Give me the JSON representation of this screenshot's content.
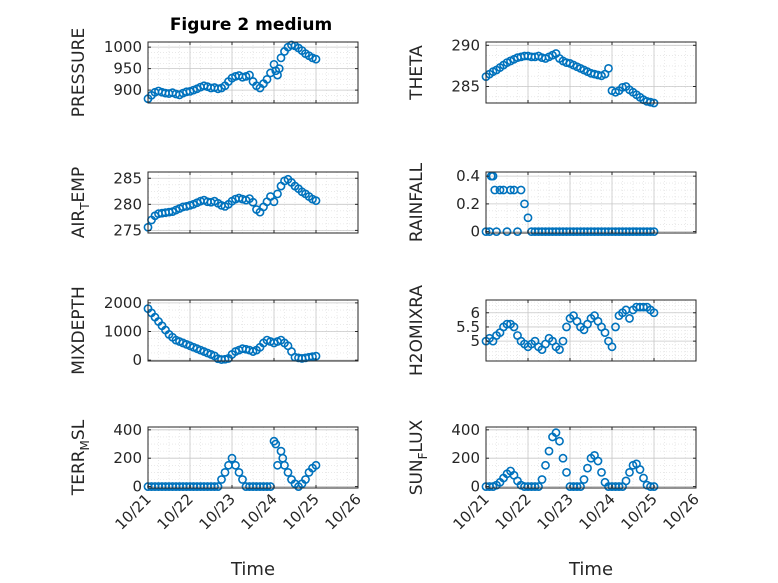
{
  "figure_title": "Figure 2 medium",
  "colors": {
    "marker": "#0072BD",
    "axis": "#262626",
    "grid": "#dcdcdc"
  },
  "chart_data": [
    {
      "type": "scatter",
      "title": "Figure 2 medium",
      "ylabel": "PRESSURE",
      "xlabel": "",
      "xlim": [
        "10/21",
        "10/26"
      ],
      "ylim": [
        870,
        1012
      ],
      "yticks": [
        900,
        950,
        1000
      ],
      "xtick_labels": [],
      "grid": true,
      "x": [
        "10/21 00:00",
        "10/21 02:00",
        "10/21 04:00",
        "10/21 06:00",
        "10/21 08:00",
        "10/21 10:00",
        "10/21 12:00",
        "10/21 14:00",
        "10/21 16:00",
        "10/21 18:00",
        "10/21 20:00",
        "10/21 22:00",
        "10/22 00:00",
        "10/22 02:00",
        "10/22 04:00",
        "10/22 06:00",
        "10/22 08:00",
        "10/22 10:00",
        "10/22 12:00",
        "10/22 14:00",
        "10/22 16:00",
        "10/22 18:00",
        "10/22 20:00",
        "10/22 22:00",
        "10/23 00:00",
        "10/23 02:00",
        "10/23 04:00",
        "10/23 06:00",
        "10/23 08:00",
        "10/23 10:00",
        "10/23 12:00",
        "10/23 14:00",
        "10/23 16:00",
        "10/23 18:00",
        "10/23 20:00",
        "10/23 22:00",
        "10/24 00:00",
        "10/24 01:00",
        "10/24 02:00",
        "10/24 03:00",
        "10/24 04:00",
        "10/24 06:00",
        "10/24 08:00",
        "10/24 10:00",
        "10/24 12:00",
        "10/24 14:00",
        "10/24 16:00",
        "10/24 18:00",
        "10/24 20:00",
        "10/24 22:00",
        "10/25 00:00"
      ],
      "values": [
        880,
        888,
        895,
        898,
        895,
        893,
        892,
        894,
        891,
        889,
        893,
        896,
        897,
        900,
        903,
        907,
        910,
        908,
        905,
        906,
        903,
        905,
        910,
        920,
        928,
        932,
        934,
        930,
        932,
        935,
        920,
        910,
        905,
        915,
        925,
        940,
        960,
        945,
        935,
        950,
        975,
        990,
        1000,
        1005,
        1003,
        998,
        992,
        985,
        980,
        975,
        972
      ]
    },
    {
      "type": "scatter",
      "ylabel": "THETA",
      "xlabel": "",
      "xlim": [
        "10/21",
        "10/26"
      ],
      "ylim": [
        283,
        290.4
      ],
      "yticks": [
        285,
        290
      ],
      "xtick_labels": [],
      "grid": true,
      "x": [
        "10/21 00:00",
        "10/21 02:00",
        "10/21 04:00",
        "10/21 06:00",
        "10/21 08:00",
        "10/21 10:00",
        "10/21 12:00",
        "10/21 14:00",
        "10/21 16:00",
        "10/21 18:00",
        "10/21 20:00",
        "10/21 22:00",
        "10/22 00:00",
        "10/22 02:00",
        "10/22 04:00",
        "10/22 06:00",
        "10/22 08:00",
        "10/22 10:00",
        "10/22 12:00",
        "10/22 14:00",
        "10/22 16:00",
        "10/22 18:00",
        "10/22 20:00",
        "10/22 22:00",
        "10/23 00:00",
        "10/23 02:00",
        "10/23 04:00",
        "10/23 06:00",
        "10/23 08:00",
        "10/23 10:00",
        "10/23 12:00",
        "10/23 14:00",
        "10/23 16:00",
        "10/23 18:00",
        "10/23 20:00",
        "10/23 22:00",
        "10/24 00:00",
        "10/24 02:00",
        "10/24 04:00",
        "10/24 06:00",
        "10/24 08:00",
        "10/24 10:00",
        "10/24 12:00",
        "10/24 14:00",
        "10/24 16:00",
        "10/24 18:00",
        "10/24 20:00",
        "10/24 22:00",
        "10/25 00:00"
      ],
      "values": [
        286.2,
        286.5,
        286.8,
        287.0,
        287.3,
        287.6,
        287.9,
        288.1,
        288.3,
        288.5,
        288.6,
        288.7,
        288.7,
        288.6,
        288.6,
        288.7,
        288.5,
        288.4,
        288.6,
        288.8,
        289.0,
        288.4,
        288.1,
        287.9,
        287.8,
        287.6,
        287.4,
        287.2,
        287.0,
        286.8,
        286.6,
        286.5,
        286.4,
        286.3,
        286.5,
        287.2,
        284.5,
        284.3,
        284.5,
        284.9,
        285.0,
        284.6,
        284.3,
        284.0,
        283.7,
        283.4,
        283.2,
        283.1,
        283.0
      ]
    },
    {
      "type": "scatter",
      "ylabel": "AIR_TEMP",
      "xlabel": "",
      "xlim": [
        "10/21",
        "10/26"
      ],
      "ylim": [
        274.5,
        286.2
      ],
      "yticks": [
        275,
        280,
        285
      ],
      "xtick_labels": [],
      "grid": true,
      "x": [
        "10/21 00:00",
        "10/21 02:00",
        "10/21 04:00",
        "10/21 06:00",
        "10/21 08:00",
        "10/21 10:00",
        "10/21 12:00",
        "10/21 14:00",
        "10/21 16:00",
        "10/21 18:00",
        "10/21 20:00",
        "10/21 22:00",
        "10/22 00:00",
        "10/22 02:00",
        "10/22 04:00",
        "10/22 06:00",
        "10/22 08:00",
        "10/22 10:00",
        "10/22 12:00",
        "10/22 14:00",
        "10/22 16:00",
        "10/22 18:00",
        "10/22 20:00",
        "10/22 22:00",
        "10/23 00:00",
        "10/23 02:00",
        "10/23 04:00",
        "10/23 06:00",
        "10/23 08:00",
        "10/23 10:00",
        "10/23 12:00",
        "10/23 14:00",
        "10/23 16:00",
        "10/23 18:00",
        "10/23 20:00",
        "10/23 22:00",
        "10/24 00:00",
        "10/24 02:00",
        "10/24 04:00",
        "10/24 06:00",
        "10/24 08:00",
        "10/24 10:00",
        "10/24 12:00",
        "10/24 14:00",
        "10/24 16:00",
        "10/24 18:00",
        "10/24 20:00",
        "10/24 22:00",
        "10/25 00:00"
      ],
      "values": [
        275.6,
        277.0,
        277.8,
        278.2,
        278.3,
        278.4,
        278.5,
        278.6,
        278.9,
        279.2,
        279.5,
        279.6,
        279.8,
        280.0,
        280.3,
        280.6,
        280.8,
        280.5,
        280.4,
        280.6,
        280.2,
        279.8,
        279.6,
        280.0,
        280.6,
        281.0,
        281.2,
        281.0,
        280.8,
        281.1,
        280.4,
        279.0,
        278.5,
        279.5,
        280.5,
        281.5,
        280.5,
        282.0,
        283.5,
        284.5,
        284.8,
        284.2,
        283.5,
        283.0,
        282.4,
        282.0,
        281.5,
        281.0,
        280.7
      ]
    },
    {
      "type": "scatter",
      "ylabel": "RAINFALL",
      "xlabel": "",
      "xlim": [
        "10/21",
        "10/26"
      ],
      "ylim": [
        -0.01,
        0.43
      ],
      "yticks": [
        0,
        0.2,
        0.4
      ],
      "xtick_labels": [],
      "grid": true,
      "x": [
        "10/21 00:00",
        "10/21 02:00",
        "10/21 03:00",
        "10/21 04:00",
        "10/21 05:00",
        "10/21 06:00",
        "10/21 08:00",
        "10/21 10:00",
        "10/21 12:00",
        "10/21 14:00",
        "10/21 16:00",
        "10/21 18:00",
        "10/21 20:00",
        "10/21 22:00",
        "10/22 00:00",
        "10/22 02:00",
        "10/22 04:00",
        "10/22 06:00",
        "10/22 08:00",
        "10/22 10:00",
        "10/22 12:00",
        "10/22 14:00",
        "10/22 16:00",
        "10/22 18:00",
        "10/22 20:00",
        "10/22 22:00",
        "10/23 00:00",
        "10/23 02:00",
        "10/23 04:00",
        "10/23 06:00",
        "10/23 08:00",
        "10/23 10:00",
        "10/23 12:00",
        "10/23 14:00",
        "10/23 16:00",
        "10/23 18:00",
        "10/23 20:00",
        "10/23 22:00",
        "10/24 00:00",
        "10/24 02:00",
        "10/24 04:00",
        "10/24 06:00",
        "10/24 08:00",
        "10/24 10:00",
        "10/24 12:00",
        "10/24 14:00",
        "10/24 16:00",
        "10/24 18:00",
        "10/24 20:00",
        "10/24 22:00",
        "10/25 00:00"
      ],
      "values": [
        0,
        0,
        0.4,
        0.4,
        0.3,
        0,
        0.3,
        0.3,
        0,
        0.3,
        0.3,
        0,
        0.3,
        0.2,
        0.1,
        0,
        0,
        0,
        0,
        0,
        0,
        0,
        0,
        0,
        0,
        0,
        0,
        0,
        0,
        0,
        0,
        0,
        0,
        0,
        0,
        0,
        0,
        0,
        0,
        0,
        0,
        0,
        0,
        0,
        0,
        0,
        0,
        0,
        0,
        0,
        0
      ]
    },
    {
      "type": "scatter",
      "ylabel": "MIXDEPTH",
      "xlabel": "",
      "xlim": [
        "10/21",
        "10/26"
      ],
      "ylim": [
        -30,
        2100
      ],
      "yticks": [
        0,
        1000,
        2000
      ],
      "xtick_labels": [],
      "grid": true,
      "x": [
        "10/21 00:00",
        "10/21 02:00",
        "10/21 04:00",
        "10/21 06:00",
        "10/21 08:00",
        "10/21 10:00",
        "10/21 12:00",
        "10/21 14:00",
        "10/21 16:00",
        "10/21 18:00",
        "10/21 20:00",
        "10/21 22:00",
        "10/22 00:00",
        "10/22 02:00",
        "10/22 04:00",
        "10/22 06:00",
        "10/22 08:00",
        "10/22 10:00",
        "10/22 12:00",
        "10/22 14:00",
        "10/22 16:00",
        "10/22 18:00",
        "10/22 20:00",
        "10/22 22:00",
        "10/23 00:00",
        "10/23 02:00",
        "10/23 04:00",
        "10/23 06:00",
        "10/23 08:00",
        "10/23 10:00",
        "10/23 12:00",
        "10/23 14:00",
        "10/23 16:00",
        "10/23 18:00",
        "10/23 20:00",
        "10/23 22:00",
        "10/24 00:00",
        "10/24 02:00",
        "10/24 04:00",
        "10/24 06:00",
        "10/24 08:00",
        "10/24 10:00",
        "10/24 12:00",
        "10/24 14:00",
        "10/24 16:00",
        "10/24 18:00",
        "10/24 20:00",
        "10/24 22:00",
        "10/25 00:00"
      ],
      "values": [
        1800,
        1650,
        1500,
        1350,
        1200,
        1050,
        900,
        800,
        700,
        650,
        600,
        550,
        500,
        450,
        400,
        350,
        300,
        250,
        200,
        150,
        50,
        20,
        30,
        60,
        200,
        300,
        350,
        400,
        380,
        350,
        300,
        350,
        450,
        600,
        700,
        650,
        600,
        650,
        700,
        600,
        500,
        300,
        100,
        80,
        60,
        80,
        100,
        120,
        140
      ]
    },
    {
      "type": "scatter",
      "ylabel": "H2OMIXRA",
      "xlabel": "",
      "xlim": [
        "10/21",
        "10/26"
      ],
      "ylim": [
        4.3,
        6.45
      ],
      "yticks": [
        5,
        5.5,
        6
      ],
      "xtick_labels": [],
      "grid": true,
      "x": [
        "10/21 00:00",
        "10/21 02:00",
        "10/21 04:00",
        "10/21 06:00",
        "10/21 08:00",
        "10/21 10:00",
        "10/21 12:00",
        "10/21 14:00",
        "10/21 16:00",
        "10/21 18:00",
        "10/21 20:00",
        "10/21 22:00",
        "10/22 00:00",
        "10/22 02:00",
        "10/22 04:00",
        "10/22 06:00",
        "10/22 08:00",
        "10/22 10:00",
        "10/22 12:00",
        "10/22 14:00",
        "10/22 16:00",
        "10/22 18:00",
        "10/22 20:00",
        "10/22 22:00",
        "10/23 00:00",
        "10/23 02:00",
        "10/23 04:00",
        "10/23 06:00",
        "10/23 08:00",
        "10/23 10:00",
        "10/23 12:00",
        "10/23 14:00",
        "10/23 16:00",
        "10/23 18:00",
        "10/23 20:00",
        "10/23 22:00",
        "10/24 00:00",
        "10/24 02:00",
        "10/24 04:00",
        "10/24 06:00",
        "10/24 08:00",
        "10/24 10:00",
        "10/24 12:00",
        "10/24 14:00",
        "10/24 16:00",
        "10/24 18:00",
        "10/24 20:00",
        "10/24 22:00",
        "10/25 00:00"
      ],
      "values": [
        5.0,
        5.1,
        5.0,
        5.2,
        5.3,
        5.5,
        5.6,
        5.6,
        5.5,
        5.2,
        5.0,
        4.9,
        4.8,
        4.9,
        5.0,
        4.8,
        4.7,
        4.9,
        5.1,
        5.0,
        4.8,
        4.7,
        5.0,
        5.5,
        5.8,
        5.9,
        5.7,
        5.5,
        5.4,
        5.6,
        5.8,
        5.9,
        5.7,
        5.5,
        5.3,
        5.0,
        4.8,
        5.5,
        5.9,
        6.0,
        6.1,
        5.8,
        6.1,
        6.2,
        6.2,
        6.2,
        6.2,
        6.1,
        6.0
      ]
    },
    {
      "type": "scatter",
      "ylabel": "TERR_MSL",
      "xlabel": "Time",
      "xlim": [
        "10/21",
        "10/26"
      ],
      "ylim": [
        -10,
        420
      ],
      "yticks": [
        0,
        200,
        400
      ],
      "xtick_labels": [
        "10/21",
        "10/22",
        "10/23",
        "10/24",
        "10/25",
        "10/26"
      ],
      "grid": true,
      "x": [
        "10/21 00:00",
        "10/21 02:00",
        "10/21 04:00",
        "10/21 06:00",
        "10/21 08:00",
        "10/21 10:00",
        "10/21 12:00",
        "10/21 14:00",
        "10/21 16:00",
        "10/21 18:00",
        "10/21 20:00",
        "10/21 22:00",
        "10/22 00:00",
        "10/22 02:00",
        "10/22 04:00",
        "10/22 06:00",
        "10/22 08:00",
        "10/22 10:00",
        "10/22 12:00",
        "10/22 14:00",
        "10/22 16:00",
        "10/22 18:00",
        "10/22 20:00",
        "10/22 22:00",
        "10/23 00:00",
        "10/23 02:00",
        "10/23 04:00",
        "10/23 06:00",
        "10/23 08:00",
        "10/23 10:00",
        "10/23 12:00",
        "10/23 14:00",
        "10/23 16:00",
        "10/23 18:00",
        "10/23 20:00",
        "10/23 22:00",
        "10/24 00:00",
        "10/24 01:00",
        "10/24 02:00",
        "10/24 04:00",
        "10/24 05:00",
        "10/24 06:00",
        "10/24 08:00",
        "10/24 10:00",
        "10/24 12:00",
        "10/24 14:00",
        "10/24 16:00",
        "10/24 18:00",
        "10/24 20:00",
        "10/24 22:00",
        "10/25 00:00"
      ],
      "values": [
        0,
        0,
        0,
        0,
        0,
        0,
        0,
        0,
        0,
        0,
        0,
        0,
        0,
        0,
        0,
        0,
        0,
        0,
        0,
        0,
        0,
        50,
        100,
        150,
        200,
        150,
        100,
        50,
        0,
        0,
        0,
        0,
        0,
        0,
        0,
        0,
        320,
        300,
        150,
        250,
        200,
        150,
        100,
        50,
        20,
        0,
        20,
        50,
        100,
        130,
        150
      ]
    },
    {
      "type": "scatter",
      "ylabel": "SUN_FLUX",
      "xlabel": "Time",
      "xlim": [
        "10/21",
        "10/26"
      ],
      "ylim": [
        -10,
        420
      ],
      "yticks": [
        0,
        200,
        400
      ],
      "xtick_labels": [
        "10/21",
        "10/22",
        "10/23",
        "10/24",
        "10/25",
        "10/26"
      ],
      "grid": true,
      "x": [
        "10/21 00:00",
        "10/21 02:00",
        "10/21 04:00",
        "10/21 06:00",
        "10/21 08:00",
        "10/21 10:00",
        "10/21 12:00",
        "10/21 14:00",
        "10/21 16:00",
        "10/21 18:00",
        "10/21 20:00",
        "10/21 22:00",
        "10/22 00:00",
        "10/22 02:00",
        "10/22 04:00",
        "10/22 06:00",
        "10/22 08:00",
        "10/22 10:00",
        "10/22 12:00",
        "10/22 14:00",
        "10/22 16:00",
        "10/22 18:00",
        "10/22 20:00",
        "10/22 22:00",
        "10/23 00:00",
        "10/23 02:00",
        "10/23 04:00",
        "10/23 06:00",
        "10/23 08:00",
        "10/23 10:00",
        "10/23 12:00",
        "10/23 14:00",
        "10/23 16:00",
        "10/23 18:00",
        "10/23 20:00",
        "10/23 22:00",
        "10/24 00:00",
        "10/24 02:00",
        "10/24 04:00",
        "10/24 06:00",
        "10/24 08:00",
        "10/24 10:00",
        "10/24 12:00",
        "10/24 14:00",
        "10/24 16:00",
        "10/24 18:00",
        "10/24 20:00",
        "10/24 22:00",
        "10/25 00:00"
      ],
      "values": [
        0,
        0,
        0,
        10,
        30,
        60,
        90,
        110,
        80,
        40,
        10,
        0,
        0,
        0,
        0,
        0,
        50,
        150,
        250,
        350,
        380,
        320,
        200,
        100,
        0,
        0,
        0,
        0,
        50,
        130,
        200,
        220,
        180,
        100,
        30,
        0,
        0,
        0,
        0,
        0,
        40,
        100,
        150,
        160,
        120,
        60,
        10,
        0,
        0
      ]
    }
  ]
}
